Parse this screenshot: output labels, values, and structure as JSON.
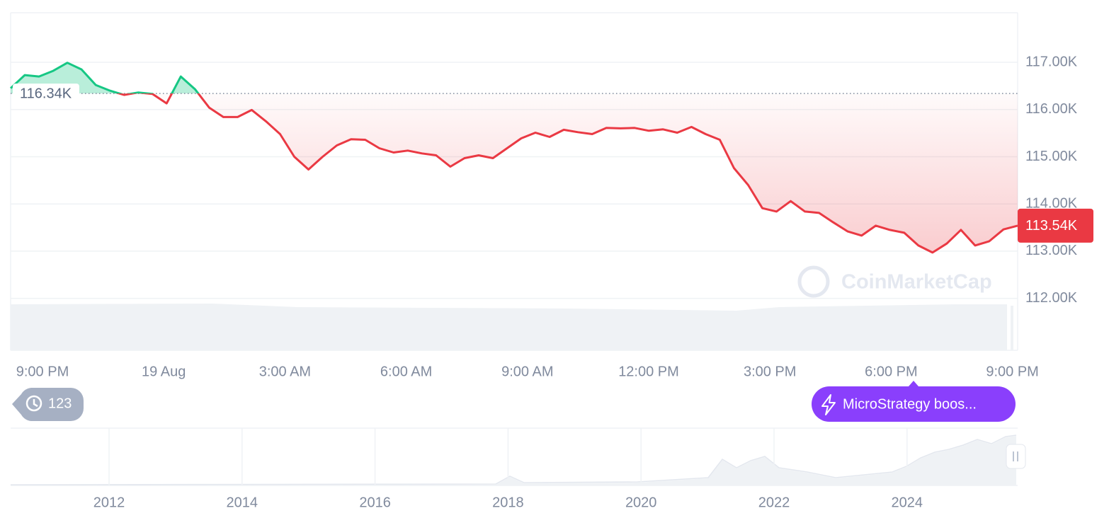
{
  "chart_data": {
    "type": "line",
    "values": [
      116450,
      116730,
      116700,
      116820,
      116990,
      116850,
      116520,
      116400,
      116310,
      116360,
      116330,
      116130,
      116700,
      116430,
      116040,
      115840,
      115840,
      115990,
      115750,
      115480,
      115000,
      114730,
      115000,
      115240,
      115370,
      115360,
      115180,
      115090,
      115130,
      115070,
      115030,
      114790,
      114970,
      115030,
      114970,
      115180,
      115390,
      115510,
      115420,
      115570,
      115520,
      115480,
      115610,
      115600,
      115610,
      115550,
      115580,
      115510,
      115630,
      115480,
      115360,
      114760,
      114400,
      113910,
      113840,
      114060,
      113840,
      113810,
      113610,
      113420,
      113330,
      113540,
      113450,
      113390,
      113120,
      112970,
      113160,
      113450,
      113120,
      113210,
      113460,
      113540
    ],
    "last_label": "113.54K",
    "x_labels": [
      "9:00 PM",
      "19 Aug",
      "3:00 AM",
      "6:00 AM",
      "9:00 AM",
      "12:00 PM",
      "3:00 PM",
      "6:00 PM",
      "9:00 PM"
    ],
    "ylim": [
      110900,
      118050
    ],
    "yticks": [
      {
        "value": 112000,
        "label": "112.00K"
      },
      {
        "value": 113000,
        "label": "113.00K"
      },
      {
        "value": 114000,
        "label": "114.00K"
      },
      {
        "value": 115000,
        "label": "115.00K"
      },
      {
        "value": 116000,
        "label": "116.00K"
      },
      {
        "value": 117000,
        "label": "117.00K"
      }
    ],
    "baseline": {
      "value": 116340,
      "label": "116.34K"
    },
    "colors": {
      "up": "#16c784",
      "down": "#ea3943"
    },
    "grid": true
  },
  "annotations": {
    "history_count": 123,
    "event": "MicroStrategy boos..."
  },
  "watermark": "CoinMarketCap",
  "navigator": {
    "xticks": [
      2012,
      2014,
      2016,
      2018,
      2020,
      2022,
      2024
    ]
  }
}
